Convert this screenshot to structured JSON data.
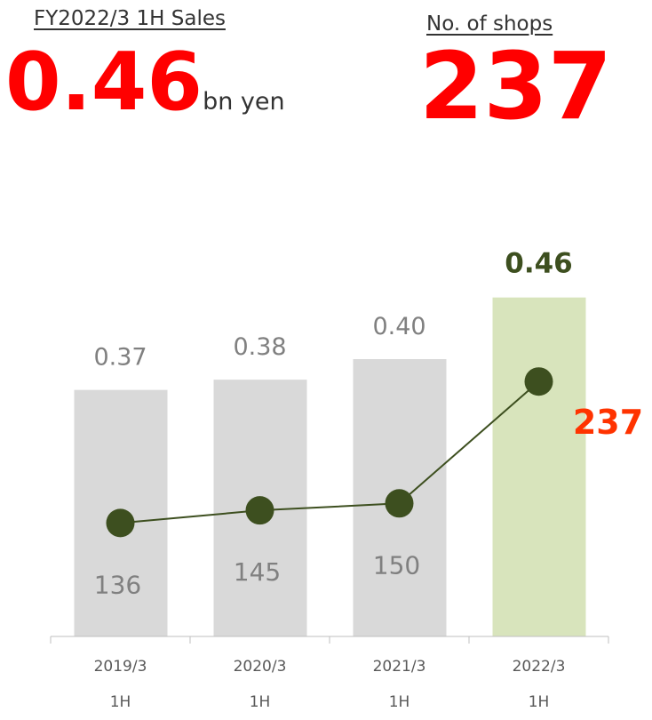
{
  "header": {
    "sales_label": "FY2022/3 1H Sales",
    "sales_value": "0.46",
    "sales_unit": "bn yen",
    "shops_label": "No. of shops",
    "shops_value": "237"
  },
  "chart_data": {
    "type": "bar-line",
    "categories": [
      "2019/3 1H",
      "2020/3 1H",
      "2021/3 1H",
      "2022/3 1H"
    ],
    "series": [
      {
        "type": "bar",
        "colors": [
          "#d9d9d9",
          "#d9d9d9",
          "#d9d9d9",
          "#d8e4bc"
        ],
        "label_colors": [
          "#808080",
          "#808080",
          "#808080",
          "#3d4f1f"
        ],
        "values": [
          0.37,
          0.38,
          0.4,
          0.46
        ],
        "value_labels": [
          "0.37",
          "0.38",
          "0.40",
          "0.46"
        ]
      },
      {
        "type": "line",
        "axis": "y2",
        "color": "#3d4f1f",
        "label_colors": [
          "#808080",
          "#808080",
          "#808080",
          "#ff3300"
        ],
        "values": [
          136,
          145,
          150,
          237
        ]
      }
    ],
    "ylim": [
      0.13,
      0.49
    ],
    "y2lim": [
      55,
      319
    ]
  }
}
